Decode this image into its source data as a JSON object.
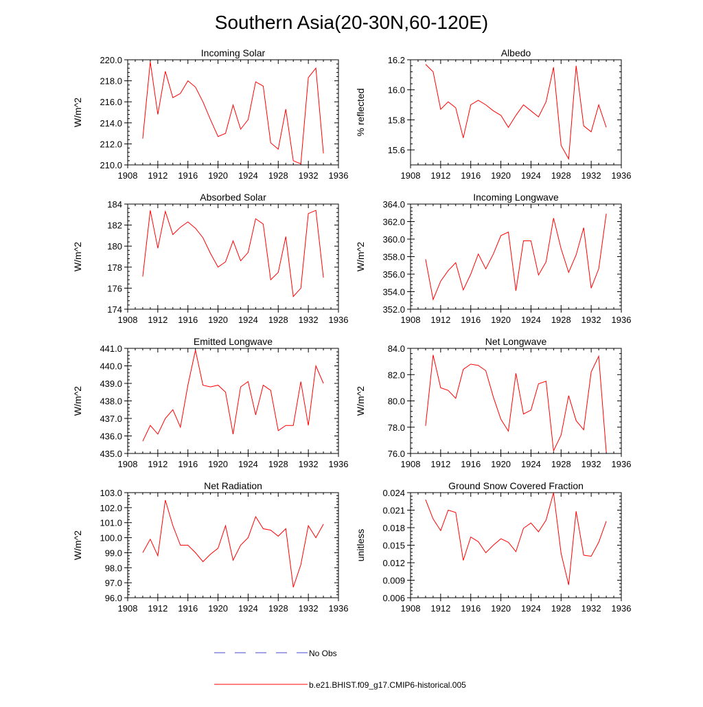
{
  "figure": {
    "title": "Southern Asia(20-30N,60-120E)",
    "colors": {
      "model": "#ff0000",
      "obs": "#4444cc",
      "axis": "#000000"
    }
  },
  "chart_data": [
    {
      "type": "line",
      "title": "Incoming Solar",
      "ylabel": "W/m^2",
      "xlim": [
        1908,
        1936
      ],
      "xticks": [
        "1908",
        "1912",
        "1916",
        "1920",
        "1924",
        "1928",
        "1932",
        "1936"
      ],
      "ylim": [
        210,
        220
      ],
      "yticks": [
        "210.0",
        "212.0",
        "214.0",
        "216.0",
        "218.0",
        "220.0"
      ],
      "x": [
        1910,
        1911,
        1912,
        1913,
        1914,
        1915,
        1916,
        1917,
        1918,
        1919,
        1920,
        1921,
        1922,
        1923,
        1924,
        1925,
        1926,
        1927,
        1928,
        1929,
        1930,
        1931,
        1932,
        1933,
        1934
      ],
      "series": [
        {
          "name": "b.e21.BHIST.f09_g17.CMIP6-historical.005",
          "values": [
            212.5,
            219.8,
            214.8,
            218.9,
            216.4,
            216.8,
            218.0,
            217.4,
            216.0,
            214.3,
            212.7,
            213.0,
            215.7,
            213.4,
            214.3,
            217.9,
            217.5,
            212.1,
            211.5,
            215.3,
            210.4,
            210.1,
            218.3,
            219.2,
            211.1
          ]
        }
      ]
    },
    {
      "type": "line",
      "title": "Albedo",
      "ylabel": "% reflected",
      "xlim": [
        1908,
        1936
      ],
      "xticks": [
        "1908",
        "1912",
        "1916",
        "1920",
        "1924",
        "1928",
        "1932",
        "1936"
      ],
      "ylim": [
        15.5,
        16.2
      ],
      "yticks": [
        "15.6",
        "15.8",
        "16.0",
        "16.2"
      ],
      "x": [
        1910,
        1911,
        1912,
        1913,
        1914,
        1915,
        1916,
        1917,
        1918,
        1919,
        1920,
        1921,
        1922,
        1923,
        1924,
        1925,
        1926,
        1927,
        1928,
        1929,
        1930,
        1931,
        1932,
        1933,
        1934
      ],
      "series": [
        {
          "name": "b.e21.BHIST.f09_g17.CMIP6-historical.005",
          "values": [
            16.17,
            16.12,
            15.87,
            15.92,
            15.88,
            15.68,
            15.9,
            15.93,
            15.9,
            15.86,
            15.83,
            15.75,
            15.83,
            15.9,
            15.86,
            15.82,
            15.92,
            16.15,
            15.63,
            15.54,
            16.16,
            15.76,
            15.72,
            15.9,
            15.75
          ]
        }
      ]
    },
    {
      "type": "line",
      "title": "Absorbed Solar",
      "ylabel": "W/m^2",
      "xlim": [
        1908,
        1936
      ],
      "xticks": [
        "1908",
        "1912",
        "1916",
        "1920",
        "1924",
        "1928",
        "1932",
        "1936"
      ],
      "ylim": [
        174,
        184
      ],
      "yticks": [
        "174",
        "176",
        "178",
        "180",
        "182",
        "184"
      ],
      "x": [
        1910,
        1911,
        1912,
        1913,
        1914,
        1915,
        1916,
        1917,
        1918,
        1919,
        1920,
        1921,
        1922,
        1923,
        1924,
        1925,
        1926,
        1927,
        1928,
        1929,
        1930,
        1931,
        1932,
        1933,
        1934
      ],
      "series": [
        {
          "name": "b.e21.BHIST.f09_g17.CMIP6-historical.005",
          "values": [
            177.1,
            183.4,
            179.8,
            183.3,
            181.1,
            181.8,
            182.3,
            181.7,
            180.8,
            179.3,
            178.0,
            178.5,
            180.5,
            178.6,
            179.4,
            182.6,
            182.1,
            176.8,
            177.5,
            180.9,
            175.2,
            176.0,
            183.1,
            183.4,
            177.0
          ]
        }
      ]
    },
    {
      "type": "line",
      "title": "Incoming Longwave",
      "ylabel": "W/m^2",
      "xlim": [
        1908,
        1936
      ],
      "xticks": [
        "1908",
        "1912",
        "1916",
        "1920",
        "1924",
        "1928",
        "1932",
        "1936"
      ],
      "ylim": [
        352,
        364
      ],
      "yticks": [
        "352.0",
        "354.0",
        "356.0",
        "358.0",
        "360.0",
        "362.0",
        "364.0"
      ],
      "x": [
        1910,
        1911,
        1912,
        1913,
        1914,
        1915,
        1916,
        1917,
        1918,
        1919,
        1920,
        1921,
        1922,
        1923,
        1924,
        1925,
        1926,
        1927,
        1928,
        1929,
        1930,
        1931,
        1932,
        1933,
        1934
      ],
      "series": [
        {
          "name": "b.e21.BHIST.f09_g17.CMIP6-historical.005",
          "values": [
            357.7,
            353.1,
            355.2,
            356.4,
            357.3,
            354.2,
            356.0,
            358.3,
            356.6,
            358.3,
            360.4,
            360.8,
            354.1,
            359.8,
            359.8,
            355.9,
            357.4,
            362.4,
            358.9,
            356.2,
            358.2,
            361.3,
            354.4,
            356.6,
            362.9
          ]
        }
      ]
    },
    {
      "type": "line",
      "title": "Emitted Longwave",
      "ylabel": "W/m^2",
      "xlim": [
        1908,
        1936
      ],
      "xticks": [
        "1908",
        "1912",
        "1916",
        "1920",
        "1924",
        "1928",
        "1932",
        "1936"
      ],
      "ylim": [
        435,
        441
      ],
      "yticks": [
        "435.0",
        "436.0",
        "437.0",
        "438.0",
        "439.0",
        "440.0",
        "441.0"
      ],
      "x": [
        1910,
        1911,
        1912,
        1913,
        1914,
        1915,
        1916,
        1917,
        1918,
        1919,
        1920,
        1921,
        1922,
        1923,
        1924,
        1925,
        1926,
        1927,
        1928,
        1929,
        1930,
        1931,
        1932,
        1933,
        1934
      ],
      "series": [
        {
          "name": "b.e21.BHIST.f09_g17.CMIP6-historical.005",
          "values": [
            435.7,
            436.6,
            436.1,
            437.0,
            437.5,
            436.5,
            438.9,
            440.9,
            438.9,
            438.8,
            438.9,
            438.5,
            436.1,
            438.8,
            439.1,
            437.2,
            438.9,
            438.6,
            436.3,
            436.6,
            436.6,
            439.1,
            436.6,
            440.0,
            439.0
          ]
        }
      ]
    },
    {
      "type": "line",
      "title": "Net Longwave",
      "ylabel": "W/m^2",
      "xlim": [
        1908,
        1936
      ],
      "xticks": [
        "1908",
        "1912",
        "1916",
        "1920",
        "1924",
        "1928",
        "1932",
        "1936"
      ],
      "ylim": [
        76,
        84
      ],
      "yticks": [
        "76.0",
        "78.0",
        "80.0",
        "82.0",
        "84.0"
      ],
      "x": [
        1910,
        1911,
        1912,
        1913,
        1914,
        1915,
        1916,
        1917,
        1918,
        1919,
        1920,
        1921,
        1922,
        1923,
        1924,
        1925,
        1926,
        1927,
        1928,
        1929,
        1930,
        1931,
        1932,
        1933,
        1934
      ],
      "series": [
        {
          "name": "b.e21.BHIST.f09_g17.CMIP6-historical.005",
          "values": [
            78.1,
            83.5,
            81.0,
            80.8,
            80.2,
            82.4,
            82.8,
            82.7,
            82.3,
            80.3,
            78.6,
            77.7,
            82.1,
            79.0,
            79.3,
            81.3,
            81.5,
            76.2,
            77.4,
            80.4,
            78.5,
            77.8,
            82.2,
            83.4,
            76.1
          ]
        }
      ]
    },
    {
      "type": "line",
      "title": "Net Radiation",
      "ylabel": "W/m^2",
      "xlim": [
        1908,
        1936
      ],
      "xticks": [
        "1908",
        "1912",
        "1916",
        "1920",
        "1924",
        "1928",
        "1932",
        "1936"
      ],
      "ylim": [
        96,
        103
      ],
      "yticks": [
        "96.0",
        "97.0",
        "98.0",
        "99.0",
        "100.0",
        "101.0",
        "102.0",
        "103.0"
      ],
      "x": [
        1910,
        1911,
        1912,
        1913,
        1914,
        1915,
        1916,
        1917,
        1918,
        1919,
        1920,
        1921,
        1922,
        1923,
        1924,
        1925,
        1926,
        1927,
        1928,
        1929,
        1930,
        1931,
        1932,
        1933,
        1934
      ],
      "series": [
        {
          "name": "b.e21.BHIST.f09_g17.CMIP6-historical.005",
          "values": [
            99.0,
            99.9,
            98.8,
            102.5,
            100.8,
            99.5,
            99.5,
            99.0,
            98.4,
            98.9,
            99.3,
            100.8,
            98.5,
            99.5,
            100.0,
            101.4,
            100.6,
            100.5,
            100.1,
            100.6,
            96.7,
            98.2,
            100.8,
            100.0,
            100.9
          ]
        }
      ]
    },
    {
      "type": "line",
      "title": "Ground Snow Covered Fraction",
      "ylabel": "unitless",
      "xlim": [
        1908,
        1936
      ],
      "xticks": [
        "1908",
        "1912",
        "1916",
        "1920",
        "1924",
        "1928",
        "1932",
        "1936"
      ],
      "ylim": [
        0.006,
        0.024
      ],
      "yticks": [
        "0.006",
        "0.009",
        "0.012",
        "0.015",
        "0.018",
        "0.021",
        "0.024"
      ],
      "x": [
        1910,
        1911,
        1912,
        1913,
        1914,
        1915,
        1916,
        1917,
        1918,
        1919,
        1920,
        1921,
        1922,
        1923,
        1924,
        1925,
        1926,
        1927,
        1928,
        1929,
        1930,
        1931,
        1932,
        1933,
        1934
      ],
      "series": [
        {
          "name": "b.e21.BHIST.f09_g17.CMIP6-historical.005",
          "values": [
            0.0228,
            0.0195,
            0.0175,
            0.021,
            0.0206,
            0.0124,
            0.0164,
            0.0156,
            0.0137,
            0.015,
            0.0161,
            0.0155,
            0.0139,
            0.0179,
            0.0188,
            0.0173,
            0.0193,
            0.024,
            0.0136,
            0.0082,
            0.0208,
            0.0133,
            0.0131,
            0.0155,
            0.0191
          ]
        }
      ]
    }
  ],
  "legend": {
    "entries": [
      {
        "label": "No Obs",
        "style": "dashed",
        "color": "#4444cc"
      },
      {
        "label": "b.e21.BHIST.f09_g17.CMIP6-historical.005",
        "style": "solid",
        "color": "#ff0000"
      }
    ]
  }
}
